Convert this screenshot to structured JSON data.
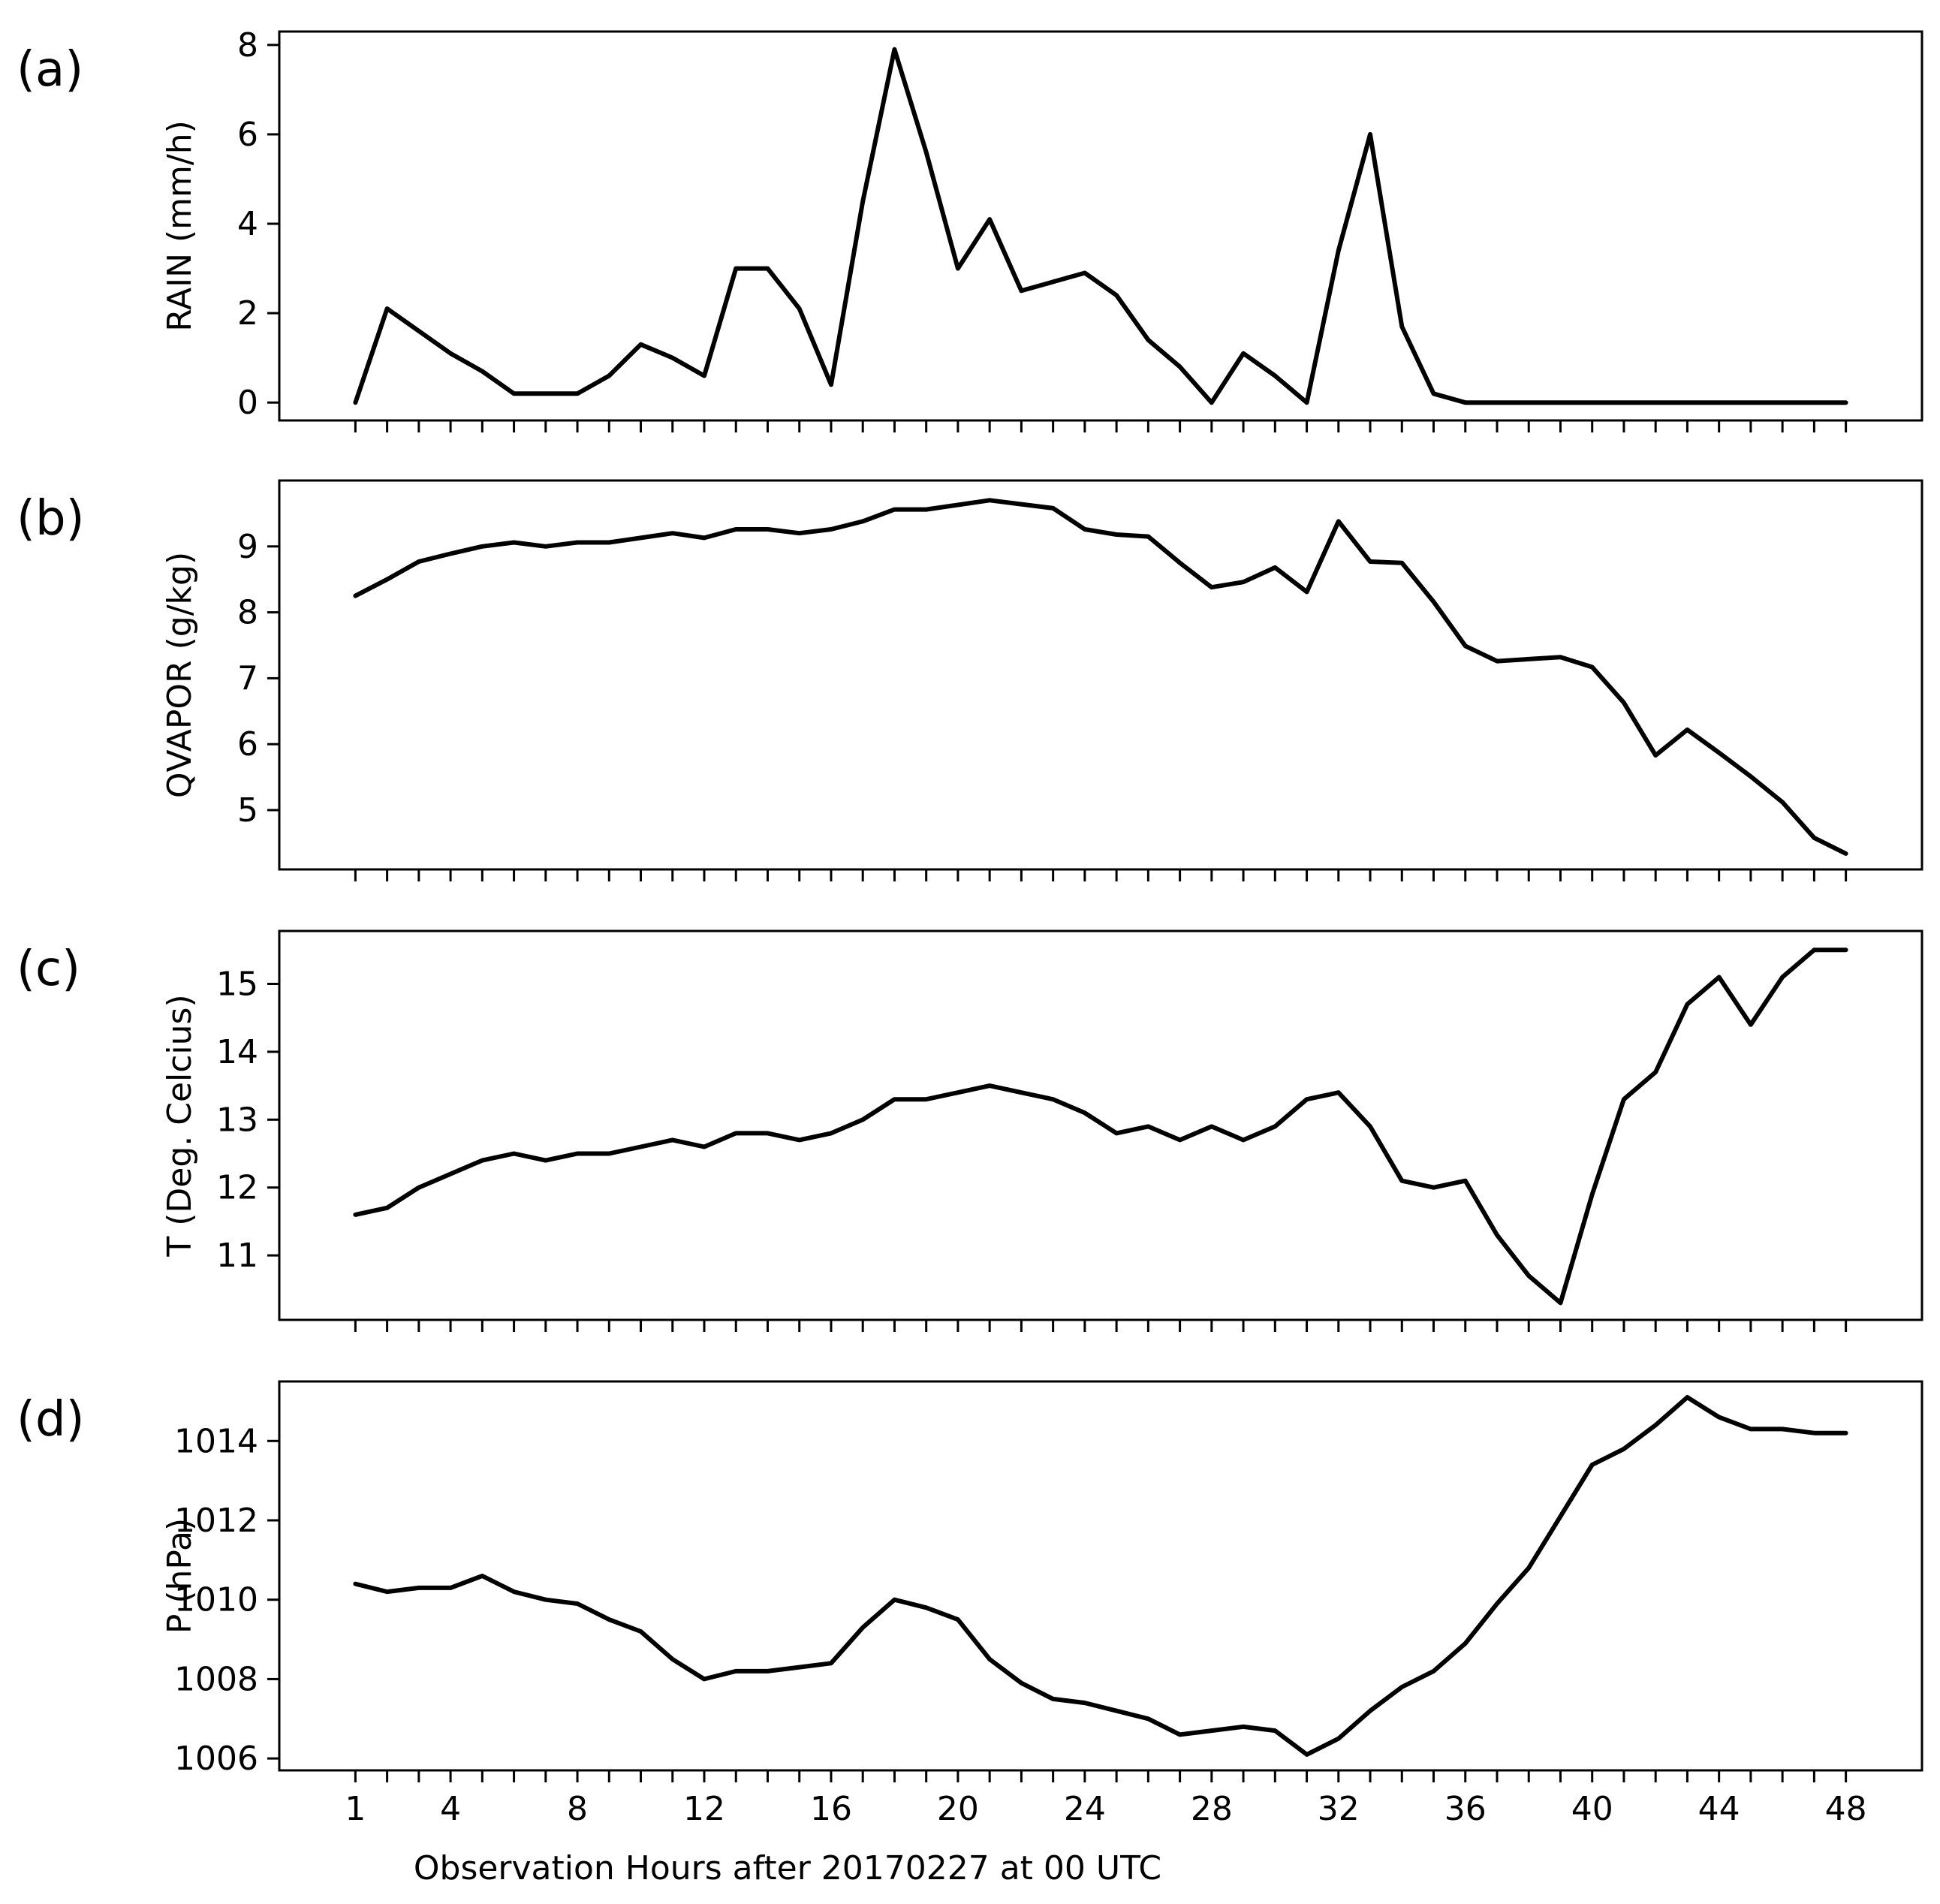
{
  "figure": {
    "xlabel": "Observation Hours after 20170227 at 00 UTC"
  },
  "chart_data": [
    {
      "type": "line",
      "panel_label": "(a)",
      "ylabel": "RAIN (mm/h)",
      "x": [
        1,
        2,
        3,
        4,
        5,
        6,
        7,
        8,
        9,
        10,
        11,
        12,
        13,
        14,
        15,
        16,
        17,
        18,
        19,
        20,
        21,
        22,
        23,
        24,
        25,
        26,
        27,
        28,
        29,
        30,
        31,
        32,
        33,
        34,
        35,
        36,
        37,
        38,
        39,
        40,
        41,
        42,
        43,
        44,
        45,
        46,
        47,
        48
      ],
      "values": [
        0.0,
        2.1,
        1.6,
        1.1,
        0.7,
        0.2,
        0.2,
        0.2,
        0.6,
        1.3,
        1.0,
        0.6,
        3.0,
        3.0,
        2.1,
        0.4,
        4.5,
        7.9,
        5.6,
        3.0,
        4.1,
        2.5,
        2.7,
        2.9,
        2.4,
        1.4,
        0.8,
        0.0,
        1.1,
        0.6,
        0.0,
        3.4,
        6.0,
        1.7,
        0.2,
        0.0,
        0.0,
        0.0,
        0.0,
        0.0,
        0.0,
        0.0,
        0.0,
        0.0,
        0.0,
        0.0,
        0.0,
        0.0
      ],
      "ylim": [
        -0.4,
        8.3
      ],
      "yticks": [
        0,
        2,
        4,
        6,
        8
      ],
      "xlim": [
        -1.4,
        50.4
      ],
      "xticks_major": [
        1,
        4,
        8,
        12,
        16,
        20,
        24,
        28,
        32,
        36,
        40,
        44,
        48
      ],
      "show_xticklabels": false,
      "grid": false
    },
    {
      "type": "line",
      "panel_label": "(b)",
      "ylabel": "QVAPOR (g/kg)",
      "x": [
        1,
        2,
        3,
        4,
        5,
        6,
        7,
        8,
        9,
        10,
        11,
        12,
        13,
        14,
        15,
        16,
        17,
        18,
        19,
        20,
        21,
        22,
        23,
        24,
        25,
        26,
        27,
        28,
        29,
        30,
        31,
        32,
        33,
        34,
        35,
        36,
        37,
        38,
        39,
        40,
        41,
        42,
        43,
        44,
        45,
        46,
        47,
        48
      ],
      "values": [
        8.25,
        8.5,
        8.77,
        8.89,
        9.0,
        9.06,
        9.0,
        9.06,
        9.06,
        9.13,
        9.2,
        9.13,
        9.26,
        9.26,
        9.2,
        9.26,
        9.38,
        9.56,
        9.56,
        9.63,
        9.7,
        9.64,
        9.58,
        9.26,
        9.18,
        9.15,
        8.75,
        8.38,
        8.46,
        8.68,
        8.31,
        9.38,
        8.77,
        8.75,
        8.16,
        7.49,
        7.26,
        7.29,
        7.32,
        7.17,
        6.63,
        5.83,
        6.22,
        5.87,
        5.51,
        5.12,
        4.58,
        4.34
      ],
      "ylim": [
        4.1,
        10.0
      ],
      "yticks": [
        5,
        6,
        7,
        8,
        9
      ],
      "xlim": [
        -1.4,
        50.4
      ],
      "xticks_major": [
        1,
        4,
        8,
        12,
        16,
        20,
        24,
        28,
        32,
        36,
        40,
        44,
        48
      ],
      "show_xticklabels": false,
      "grid": false
    },
    {
      "type": "line",
      "panel_label": "(c)",
      "ylabel": "T (Deg. Celcius)",
      "x": [
        1,
        2,
        3,
        4,
        5,
        6,
        7,
        8,
        9,
        10,
        11,
        12,
        13,
        14,
        15,
        16,
        17,
        18,
        19,
        20,
        21,
        22,
        23,
        24,
        25,
        26,
        27,
        28,
        29,
        30,
        31,
        32,
        33,
        34,
        35,
        36,
        37,
        38,
        39,
        40,
        41,
        42,
        43,
        44,
        45,
        46,
        47,
        48
      ],
      "values": [
        11.6,
        11.7,
        12.0,
        12.2,
        12.4,
        12.5,
        12.4,
        12.5,
        12.5,
        12.6,
        12.7,
        12.6,
        12.8,
        12.8,
        12.7,
        12.8,
        13.0,
        13.3,
        13.3,
        13.4,
        13.5,
        13.4,
        13.3,
        13.1,
        12.8,
        12.9,
        12.7,
        12.9,
        12.7,
        12.9,
        13.3,
        13.4,
        12.9,
        12.1,
        12.0,
        12.1,
        11.3,
        10.7,
        10.3,
        11.9,
        13.3,
        13.7,
        14.7,
        15.1,
        14.4,
        15.1,
        15.5,
        15.5
      ],
      "ylim": [
        10.05,
        15.78
      ],
      "yticks": [
        11,
        12,
        13,
        14,
        15
      ],
      "xlim": [
        -1.4,
        50.4
      ],
      "xticks_major": [
        1,
        4,
        8,
        12,
        16,
        20,
        24,
        28,
        32,
        36,
        40,
        44,
        48
      ],
      "show_xticklabels": false,
      "grid": false
    },
    {
      "type": "line",
      "panel_label": "(d)",
      "ylabel": "P (hPa)",
      "x": [
        1,
        2,
        3,
        4,
        5,
        6,
        7,
        8,
        9,
        10,
        11,
        12,
        13,
        14,
        15,
        16,
        17,
        18,
        19,
        20,
        21,
        22,
        23,
        24,
        25,
        26,
        27,
        28,
        29,
        30,
        31,
        32,
        33,
        34,
        35,
        36,
        37,
        38,
        39,
        40,
        41,
        42,
        43,
        44,
        45,
        46,
        47,
        48
      ],
      "values": [
        1010.4,
        1010.2,
        1010.3,
        1010.3,
        1010.6,
        1010.2,
        1010.0,
        1009.9,
        1009.5,
        1009.2,
        1008.5,
        1008.0,
        1008.2,
        1008.2,
        1008.3,
        1008.4,
        1009.3,
        1010.0,
        1009.8,
        1009.5,
        1008.5,
        1007.9,
        1007.5,
        1007.4,
        1007.2,
        1007.0,
        1006.6,
        1006.7,
        1006.8,
        1006.7,
        1006.1,
        1006.5,
        1007.2,
        1007.8,
        1008.2,
        1008.9,
        1009.9,
        1010.8,
        1012.1,
        1013.4,
        1013.8,
        1014.4,
        1015.1,
        1014.6,
        1014.3,
        1014.3,
        1014.2,
        1014.2
      ],
      "ylim": [
        1005.7,
        1015.5
      ],
      "yticks": [
        1006,
        1008,
        1010,
        1012,
        1014
      ],
      "xlim": [
        -1.4,
        50.4
      ],
      "xticks_major": [
        1,
        4,
        8,
        12,
        16,
        20,
        24,
        28,
        32,
        36,
        40,
        44,
        48
      ],
      "xticklabels": [
        "1",
        "4",
        "8",
        "12",
        "16",
        "20",
        "24",
        "28",
        "32",
        "36",
        "40",
        "44",
        "48"
      ],
      "show_xticklabels": true,
      "grid": false
    }
  ]
}
